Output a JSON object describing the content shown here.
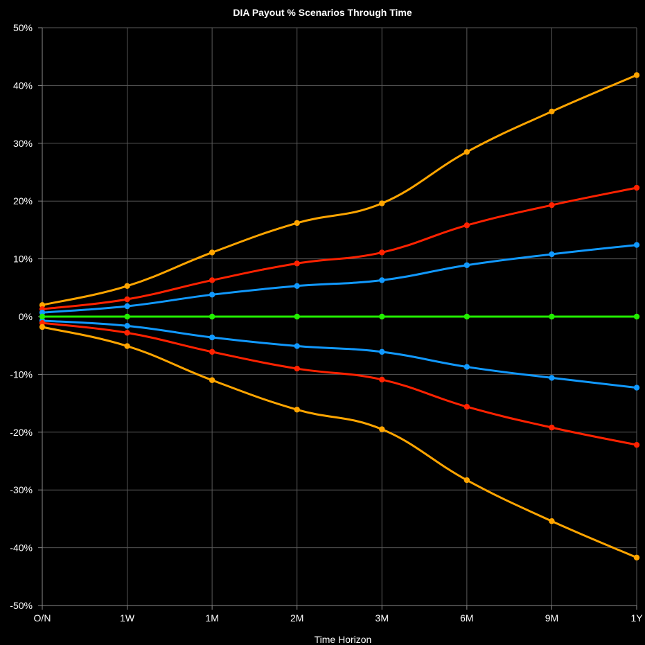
{
  "chart_data": {
    "type": "line",
    "title": "DIA Payout % Scenarios Through Time",
    "xlabel": "Time Horizon",
    "ylabel": "",
    "categories": [
      "O/N",
      "1W",
      "1M",
      "2M",
      "3M",
      "6M",
      "9M",
      "1Y"
    ],
    "ylim": [
      -50,
      50
    ],
    "yticks": [
      50,
      40,
      30,
      20,
      10,
      0,
      -10,
      -20,
      -30,
      -40,
      -50
    ],
    "ytick_labels": [
      "50%",
      "40%",
      "30%",
      "20%",
      "10%",
      "0%",
      "-10%",
      "-20%",
      "-30%",
      "-40%",
      "-50%"
    ],
    "grid": true,
    "legend": "none",
    "series": [
      {
        "color": "#ffa500",
        "values": [
          2.0,
          5.3,
          11.1,
          16.2,
          19.6,
          28.5,
          35.5,
          41.8
        ]
      },
      {
        "color": "#ff2200",
        "values": [
          1.3,
          3.0,
          6.3,
          9.2,
          11.1,
          15.8,
          19.3,
          22.3
        ]
      },
      {
        "color": "#1199ff",
        "values": [
          0.7,
          1.8,
          3.8,
          5.3,
          6.3,
          8.9,
          10.8,
          12.4
        ]
      },
      {
        "color": "#22ee00",
        "values": [
          0,
          0,
          0,
          0,
          0,
          0,
          0,
          0
        ]
      },
      {
        "color": "#1199ff",
        "values": [
          -0.7,
          -1.6,
          -3.6,
          -5.1,
          -6.1,
          -8.7,
          -10.6,
          -12.3
        ]
      },
      {
        "color": "#ff2200",
        "values": [
          -1.1,
          -2.8,
          -6.1,
          -9.0,
          -10.9,
          -15.6,
          -19.2,
          -22.2
        ]
      },
      {
        "color": "#ffa500",
        "values": [
          -1.8,
          -5.1,
          -11.0,
          -16.1,
          -19.5,
          -28.3,
          -35.4,
          -41.7
        ]
      }
    ]
  }
}
